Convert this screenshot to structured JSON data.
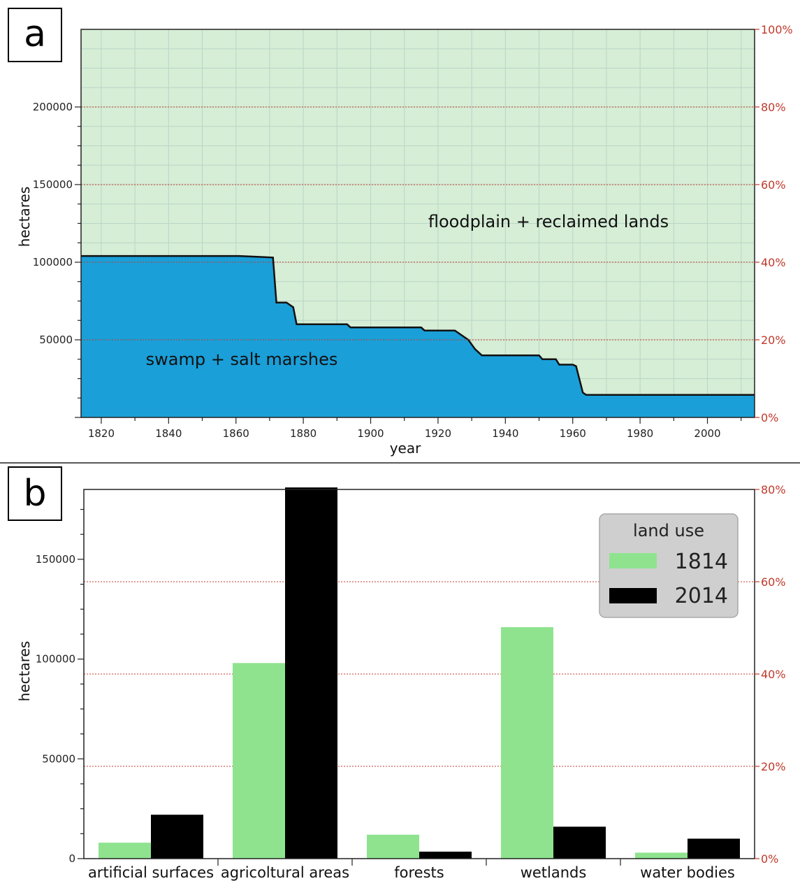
{
  "panel_a_label": "a",
  "panel_b_label": "b",
  "colors": {
    "floodplain": "#d6edd6",
    "swamp": "#1a9fd8",
    "bar_1814": "#8fe38f",
    "bar_2014": "#000000",
    "percent_axis": "#c0392b",
    "legend_bg": "#cfcfcf"
  },
  "chart_data": [
    {
      "type": "area",
      "panel": "a",
      "xlabel": "year",
      "ylabel": "hectares",
      "xlim": [
        1814,
        2014
      ],
      "ylim": [
        0,
        200000
      ],
      "y_ticks": [
        50000,
        100000,
        150000,
        200000
      ],
      "x_ticks": [
        1820,
        1840,
        1860,
        1880,
        1900,
        1920,
        1940,
        1960,
        1980,
        2000
      ],
      "right_axis_ticks": [
        "0%",
        "20%",
        "40%",
        "60%",
        "80%",
        "100%"
      ],
      "grid": true,
      "region_labels": [
        "floodplain + reclaimed lands",
        "swamp + salt marshes"
      ],
      "series": [
        {
          "name": "swamp + salt marshes",
          "x": [
            1814,
            1861,
            1871,
            1872,
            1875,
            1877,
            1878,
            1893,
            1894,
            1915,
            1916,
            1925,
            1929,
            1931,
            1932,
            1933,
            1950,
            1951,
            1955,
            1956,
            1960,
            1961,
            1963,
            1964,
            2014
          ],
          "y": [
            104000,
            104000,
            103000,
            74000,
            74000,
            71000,
            60000,
            60000,
            58000,
            58000,
            56000,
            56000,
            50000,
            44000,
            42000,
            40000,
            40000,
            37500,
            37500,
            34000,
            34000,
            33000,
            16000,
            14500,
            14500
          ]
        }
      ]
    },
    {
      "type": "bar",
      "panel": "b",
      "ylabel": "hectares",
      "ylim": [
        0,
        185000
      ],
      "y_ticks": [
        0,
        50000,
        100000,
        150000
      ],
      "right_axis_ticks": [
        "0%",
        "20%",
        "40%",
        "60%",
        "80%"
      ],
      "categories": [
        "artificial surfaces",
        "agricoltural areas",
        "forests",
        "wetlands",
        "water bodies"
      ],
      "legend_title": "land use",
      "legend_position": "top-right",
      "series": [
        {
          "name": "1814",
          "values": [
            8000,
            98000,
            12000,
            116000,
            3000
          ]
        },
        {
          "name": "2014",
          "values": [
            22000,
            186000,
            3500,
            16000,
            10000
          ]
        }
      ]
    }
  ]
}
